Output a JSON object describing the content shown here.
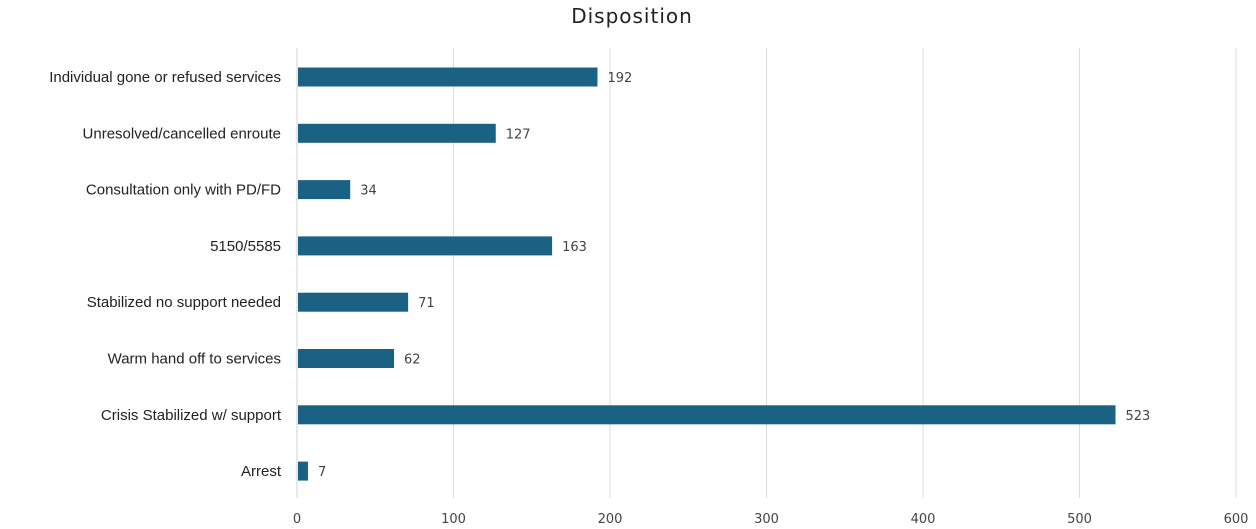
{
  "chart_data": {
    "type": "bar",
    "orientation": "horizontal",
    "title": "Disposition",
    "xlabel": "",
    "ylabel": "",
    "categories": [
      "Individual gone or refused services",
      "Unresolved/cancelled enroute",
      "Consultation only with PD/FD",
      "5150/5585",
      "Stabilized no support needed",
      "Warm hand off to services",
      "Crisis Stabilized w/ support",
      "Arrest"
    ],
    "values": [
      192,
      127,
      34,
      163,
      71,
      62,
      523,
      7
    ],
    "xlim": [
      0,
      600
    ],
    "xticks": [
      0,
      100,
      200,
      300,
      400,
      500,
      600
    ],
    "grid": "vertical",
    "legend": "none",
    "bar_color": "#1b6184"
  }
}
